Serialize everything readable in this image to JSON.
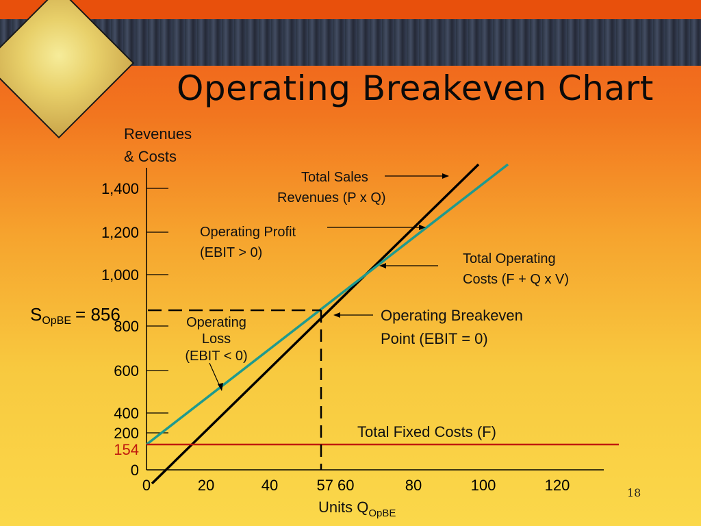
{
  "slide": {
    "title": "Operating Breakeven Chart",
    "number": "18",
    "decor_icon": "clock-money-icon"
  },
  "chart_data": {
    "type": "line",
    "title": "Operating Breakeven Chart",
    "ylabel_line1": "Revenues",
    "ylabel_line2": "& Costs",
    "xlabel": "Units Q",
    "xlabel_sub": "OpBE",
    "xlim": [
      0,
      130
    ],
    "y_tick_labels": [
      "0",
      "200",
      "400",
      "600",
      "800",
      "1,000",
      "1,200",
      "1,400"
    ],
    "y_tick_values": [
      0,
      200,
      400,
      600,
      800,
      1000,
      1200,
      1400
    ],
    "x_tick_labels": [
      "0",
      "20",
      "40",
      "57 60",
      "80",
      "100",
      "120"
    ],
    "x_tick_values": [
      0,
      20,
      40,
      57,
      80,
      100,
      120
    ],
    "series": [
      {
        "name": "Total Sales Revenues (P x Q)",
        "color": "#000000",
        "points": [
          [
            0,
            0
          ],
          [
            105,
            1570
          ]
        ]
      },
      {
        "name": "Total Operating Costs (F + Q x V)",
        "color": "#1f9a8e",
        "points": [
          [
            0,
            154
          ],
          [
            103,
            1570
          ]
        ]
      },
      {
        "name": "Total Fixed Costs (F)",
        "color": "#c01a0e",
        "points": [
          [
            0,
            154
          ],
          [
            130,
            154
          ]
        ]
      }
    ],
    "fixed_costs_value": "154",
    "breakeven": {
      "q": 57,
      "s": 856,
      "s_label_main": "S",
      "s_label_sub": "OpBE",
      "s_label_eq": "= 856"
    },
    "annotations": {
      "sales_line1": "Total Sales",
      "sales_line2": "Revenues (P x Q)",
      "profit_line1": "Operating Profit",
      "profit_line2": "(EBIT > 0)",
      "toc_line1": "Total Operating",
      "toc_line2": "Costs (F + Q x V)",
      "bep_line1": "Operating Breakeven",
      "bep_line2": "Point (EBIT = 0)",
      "loss_line1": "Operating",
      "loss_line2": "Loss",
      "loss_line3": "(EBIT < 0)",
      "fixed": "Total Fixed Costs (F)"
    }
  }
}
